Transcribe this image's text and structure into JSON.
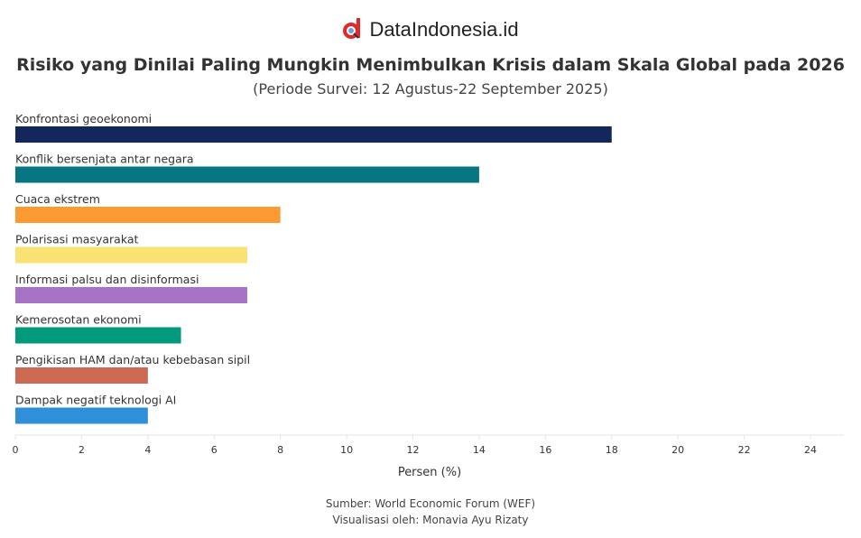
{
  "brand": "DataIndonesia.id",
  "chart_data": {
    "type": "bar",
    "orientation": "horizontal",
    "title": "Risiko yang Dinilai Paling Mungkin Menimbulkan Krisis dalam Skala Global pada 2026",
    "subtitle": "(Periode Survei: 12 Agustus-22 September 2025)",
    "categories": [
      "Konfrontasi geoekonomi",
      "Konflik bersenjata antar negara",
      "Cuaca ekstrem",
      "Polarisasi masyarakat",
      "Informasi palsu dan disinformasi",
      "Kemerosotan ekonomi",
      "Pengikisan HAM dan/atau kebebasan sipil",
      "Dampak negatif teknologi AI"
    ],
    "values": [
      18,
      14,
      8,
      7,
      7,
      5,
      4,
      4
    ],
    "colors": [
      "#13275a",
      "#067683",
      "#fd9a32",
      "#f9e172",
      "#a673c6",
      "#03997c",
      "#cd6852",
      "#2f8fd9"
    ],
    "xlabel": "Persen (%)",
    "xlim": [
      0,
      25
    ],
    "xticks": [
      0,
      2,
      4,
      6,
      8,
      10,
      12,
      14,
      16,
      18,
      20,
      22,
      24
    ],
    "grid": false
  },
  "footer": {
    "source": "Sumber: World Economic Forum (WEF)",
    "viz": "Visualisasi oleh: Monavia Ayu Rizaty"
  }
}
